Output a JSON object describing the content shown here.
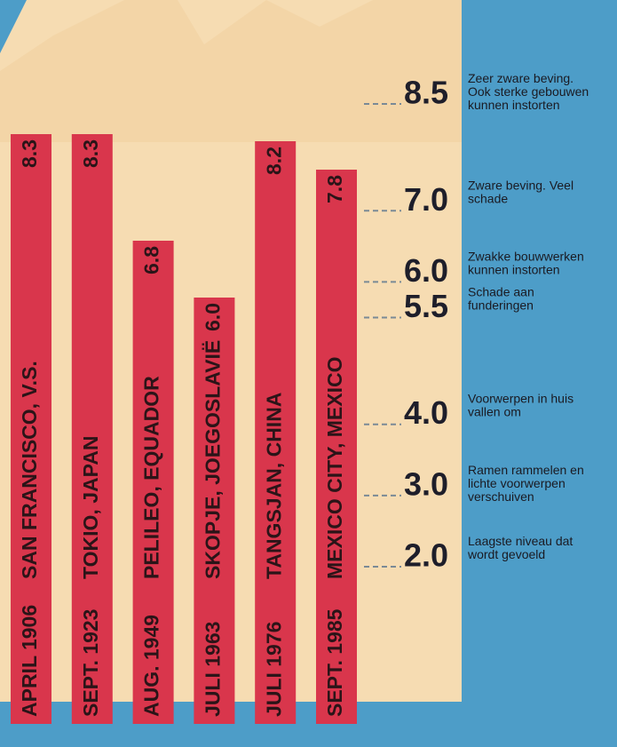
{
  "chart_data": {
    "type": "bar",
    "categories": [
      "SAN FRANCISCO, V.S.",
      "TOKIO, JAPAN",
      "PELILEO, EQUADOR",
      "SKOPJE, JOEGOSLAVIË",
      "TANGSJAN, CHINA",
      "MEXICO CITY, MEXICO"
    ],
    "dates": [
      "APRIL 1906",
      "SEPT. 1923",
      "AUG. 1949",
      "JULI 1963",
      "JULI 1976",
      "SEPT. 1985"
    ],
    "values": [
      8.3,
      8.3,
      6.8,
      6.0,
      8.2,
      7.8
    ],
    "value_labels": [
      "8.3",
      "8.3",
      "6.8",
      "6.0",
      "8.2",
      "7.8"
    ],
    "color": "#d9364c",
    "yticks": [
      8.5,
      {
        "value": 7,
        "label": "7.0"
      },
      {
        "value": 6,
        "label": "6.0"
      },
      5.5,
      {
        "value": 4,
        "label": "4.0"
      },
      {
        "value": 3,
        "label": "3.0"
      },
      {
        "value": 2,
        "label": "2.0"
      }
    ],
    "tick_descriptions": [
      "Zeer zware beving. Ook sterke gebouwen kunnen instorten",
      "Zware beving. Veel schade",
      "Zwakke bouwwerken kunnen instorten",
      "Schade aan funderingen",
      "Voorwerpen in huis vallen om",
      "Ramen rammelen en lichte voorwerpen verschuiven",
      "Laagste niveau dat wordt gevoeld"
    ]
  }
}
